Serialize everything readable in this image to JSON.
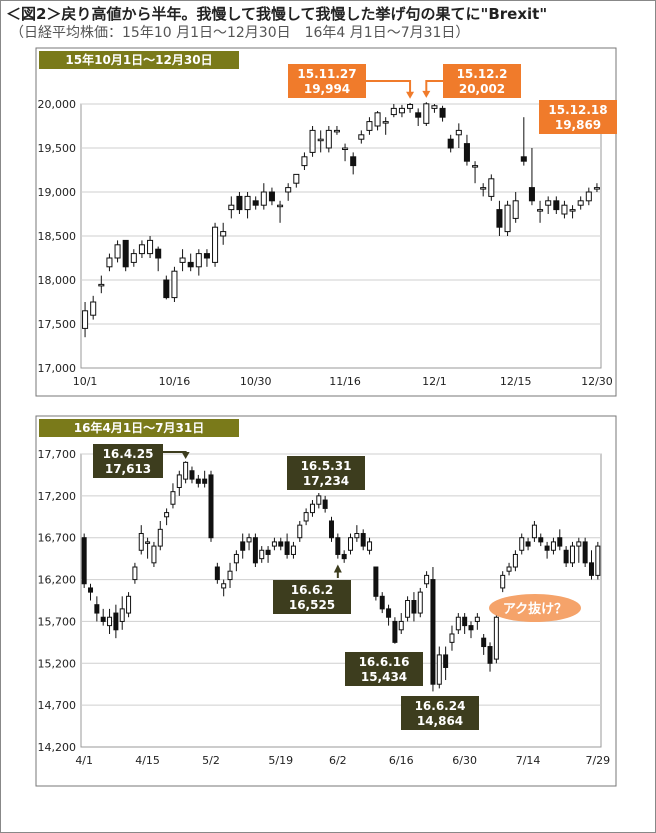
{
  "title": "＜図2＞戻り高値から半年。我慢して我慢して我慢した挙げ句の果てに\"Brexit\"",
  "subtitle": "（日経平均株価：15年10 月1日～12月30日　16年4 月1日～7月31日）",
  "colors": {
    "up": "#ffffff",
    "down": "#111111",
    "wick": "#111111",
    "grid": "#cfcfcf",
    "orange": "#f07b2b",
    "olive": "#3d3d1e",
    "panel_title": "#7a7a1a"
  },
  "chart_data": [
    {
      "type": "candlestick",
      "title": "15年10月1日～12月30日",
      "ylim": [
        17000,
        20000
      ],
      "yticks": [
        17000,
        17500,
        18000,
        18500,
        19000,
        19500,
        20000
      ],
      "ytick_labels": [
        "17,000",
        "17,500",
        "18,000",
        "18,500",
        "19,000",
        "19,500",
        "20,000"
      ],
      "xtick_labels": [
        "10/1",
        "10/16",
        "10/30",
        "11/16",
        "12/1",
        "12/15",
        "12/30"
      ],
      "xtick_index": [
        0,
        11,
        21,
        32,
        43,
        53,
        63
      ],
      "candles": [
        [
          17450,
          17650,
          17350,
          17750
        ],
        [
          17600,
          17750,
          17550,
          17820
        ],
        [
          17950,
          17950,
          17850,
          18050
        ],
        [
          18150,
          18250,
          18100,
          18300
        ],
        [
          18250,
          18400,
          18200,
          18450
        ],
        [
          18450,
          18150,
          18100,
          18450
        ],
        [
          18200,
          18300,
          18150,
          18350
        ],
        [
          18300,
          18400,
          18250,
          18450
        ],
        [
          18300,
          18450,
          18250,
          18500
        ],
        [
          18350,
          18250,
          18100,
          18380
        ],
        [
          18000,
          17800,
          17780,
          18050
        ],
        [
          17800,
          18100,
          17750,
          18150
        ],
        [
          18200,
          18250,
          18100,
          18350
        ],
        [
          18200,
          18150,
          18100,
          18300
        ],
        [
          18150,
          18300,
          18050,
          18350
        ],
        [
          18300,
          18250,
          18150,
          18350
        ],
        [
          18200,
          18600,
          18150,
          18650
        ],
        [
          18500,
          18550,
          18400,
          18650
        ],
        [
          18800,
          18850,
          18700,
          18950
        ],
        [
          18950,
          18800,
          18750,
          19000
        ],
        [
          18800,
          18950,
          18700,
          19000
        ],
        [
          18900,
          18850,
          18800,
          18950
        ],
        [
          18850,
          19000,
          18800,
          19100
        ],
        [
          19000,
          18900,
          18850,
          19050
        ],
        [
          18850,
          18850,
          18650,
          18900
        ],
        [
          19000,
          19050,
          18900,
          19100
        ],
        [
          19100,
          19200,
          19050,
          19200
        ],
        [
          19300,
          19400,
          19250,
          19450
        ],
        [
          19450,
          19700,
          19400,
          19750
        ],
        [
          19600,
          19600,
          19450,
          19700
        ],
        [
          19500,
          19700,
          19450,
          19750
        ],
        [
          19700,
          19700,
          19650,
          19750
        ],
        [
          19500,
          19500,
          19350,
          19550
        ],
        [
          19400,
          19300,
          19200,
          19450
        ],
        [
          19600,
          19650,
          19550,
          19700
        ],
        [
          19700,
          19800,
          19650,
          19850
        ],
        [
          19750,
          19900,
          19700,
          19920
        ],
        [
          19800,
          19800,
          19650,
          19850
        ],
        [
          19880,
          19950,
          19850,
          20000
        ],
        [
          19900,
          19950,
          19850,
          19990
        ],
        [
          19950,
          19994,
          19900,
          20012
        ],
        [
          19900,
          19850,
          19750,
          19950
        ],
        [
          19780,
          20002,
          19750,
          20020
        ],
        [
          19950,
          19980,
          19900,
          20000
        ],
        [
          19950,
          19850,
          19800,
          19980
        ],
        [
          19600,
          19500,
          19450,
          19650
        ],
        [
          19650,
          19700,
          19500,
          19780
        ],
        [
          19550,
          19350,
          19300,
          19650
        ],
        [
          19300,
          19300,
          19100,
          19350
        ],
        [
          19050,
          19050,
          18950,
          19100
        ],
        [
          18950,
          19150,
          18900,
          19200
        ],
        [
          18800,
          18600,
          18500,
          18900
        ],
        [
          18550,
          18850,
          18500,
          18900
        ],
        [
          18700,
          18900,
          18650,
          19000
        ],
        [
          19400,
          19350,
          19300,
          19850
        ],
        [
          19050,
          18900,
          18850,
          19500
        ],
        [
          18800,
          18800,
          18650,
          18900
        ],
        [
          18850,
          18900,
          18750,
          18950
        ],
        [
          18900,
          18800,
          18750,
          18950
        ],
        [
          18750,
          18850,
          18700,
          18900
        ],
        [
          18800,
          18800,
          18700,
          18850
        ],
        [
          18850,
          18900,
          18800,
          18950
        ],
        [
          18900,
          19000,
          18850,
          19050
        ],
        [
          19050,
          19050,
          19000,
          19100
        ]
      ],
      "annotations": [
        {
          "date": "15.11.27",
          "value": "19,994",
          "index": 40
        },
        {
          "date": "15.12.2",
          "value": "20,002",
          "index": 42
        },
        {
          "date": "15.12.18",
          "value": "19,869",
          "index": 54
        }
      ]
    },
    {
      "type": "candlestick",
      "title": "16年4月1日～7月31日",
      "ylim": [
        14200,
        17700
      ],
      "yticks": [
        14200,
        14700,
        15200,
        15700,
        16200,
        16700,
        17200,
        17700
      ],
      "ytick_labels": [
        "14,200",
        "14,700",
        "15,200",
        "15,700",
        "16,200",
        "16,700",
        "17,200",
        "17,700"
      ],
      "xtick_labels": [
        "4/1",
        "4/15",
        "5/2",
        "5/19",
        "6/2",
        "6/16",
        "6/30",
        "7/14",
        "7/29"
      ],
      "xtick_index": [
        0,
        10,
        20,
        31,
        40,
        50,
        60,
        70,
        81
      ],
      "candles": [
        [
          16700,
          16150,
          16100,
          16750
        ],
        [
          16100,
          16050,
          15950,
          16150
        ],
        [
          15900,
          15800,
          15700,
          16000
        ],
        [
          15750,
          15700,
          15650,
          15850
        ],
        [
          15650,
          15750,
          15550,
          15850
        ],
        [
          15800,
          15600,
          15500,
          15900
        ],
        [
          15700,
          15850,
          15600,
          16000
        ],
        [
          15800,
          16000,
          15750,
          16050
        ],
        [
          16200,
          16350,
          16150,
          16400
        ],
        [
          16550,
          16750,
          16500,
          16850
        ],
        [
          16650,
          16650,
          16450,
          16700
        ],
        [
          16400,
          16600,
          16350,
          16650
        ],
        [
          16600,
          16800,
          16550,
          16900
        ],
        [
          16950,
          17000,
          16850,
          17050
        ],
        [
          17100,
          17250,
          17050,
          17350
        ],
        [
          17300,
          17450,
          17200,
          17500
        ],
        [
          17400,
          17600,
          17350,
          17613
        ],
        [
          17500,
          17400,
          17350,
          17550
        ],
        [
          17400,
          17350,
          17300,
          17450
        ],
        [
          17400,
          17350,
          17300,
          17500
        ],
        [
          17450,
          16700,
          16650,
          17500
        ],
        [
          16350,
          16200,
          16150,
          16400
        ],
        [
          16100,
          16150,
          16000,
          16200
        ],
        [
          16200,
          16300,
          16100,
          16400
        ],
        [
          16400,
          16500,
          16300,
          16550
        ],
        [
          16650,
          16550,
          16450,
          16750
        ],
        [
          16650,
          16700,
          16550,
          16750
        ],
        [
          16700,
          16400,
          16350,
          16750
        ],
        [
          16450,
          16550,
          16400,
          16600
        ],
        [
          16550,
          16500,
          16400,
          16600
        ],
        [
          16600,
          16650,
          16550,
          16700
        ],
        [
          16650,
          16600,
          16550,
          16700
        ],
        [
          16650,
          16500,
          16450,
          16750
        ],
        [
          16500,
          16600,
          16450,
          16650
        ],
        [
          16700,
          16850,
          16650,
          16900
        ],
        [
          16900,
          17000,
          16850,
          17050
        ],
        [
          17000,
          17100,
          16950,
          17150
        ],
        [
          17100,
          17200,
          17050,
          17234
        ],
        [
          17150,
          17050,
          17000,
          17200
        ],
        [
          16900,
          16700,
          16650,
          16950
        ],
        [
          16700,
          16500,
          16450,
          16750
        ],
        [
          16500,
          16450,
          16400,
          16550
        ],
        [
          16550,
          16700,
          16500,
          16750
        ],
        [
          16700,
          16750,
          16650,
          16850
        ],
        [
          16750,
          16600,
          16550,
          16800
        ],
        [
          16550,
          16650,
          16500,
          16700
        ],
        [
          16350,
          16000,
          15950,
          16350
        ],
        [
          16000,
          15850,
          15800,
          16050
        ],
        [
          15850,
          15750,
          15650,
          15900
        ],
        [
          15700,
          15450,
          15434,
          15750
        ],
        [
          15600,
          15700,
          15550,
          15800
        ],
        [
          15750,
          15950,
          15700,
          16000
        ],
        [
          15950,
          15800,
          15700,
          16050
        ],
        [
          15800,
          16050,
          15750,
          16100
        ],
        [
          16150,
          16250,
          16100,
          16300
        ],
        [
          16200,
          14950,
          14864,
          16350
        ],
        [
          14950,
          15300,
          14900,
          15400
        ],
        [
          15300,
          15150,
          15000,
          15400
        ],
        [
          15450,
          15550,
          15350,
          15650
        ],
        [
          15600,
          15750,
          15550,
          15800
        ],
        [
          15750,
          15650,
          15550,
          15800
        ],
        [
          15650,
          15600,
          15500,
          15700
        ],
        [
          15700,
          15750,
          15600,
          15800
        ],
        [
          15500,
          15400,
          15300,
          15550
        ],
        [
          15400,
          15200,
          15100,
          15450
        ],
        [
          15250,
          15750,
          15200,
          15800
        ],
        [
          16100,
          16250,
          16050,
          16300
        ],
        [
          16300,
          16350,
          16250,
          16400
        ],
        [
          16350,
          16500,
          16300,
          16550
        ],
        [
          16550,
          16700,
          16500,
          16750
        ],
        [
          16650,
          16600,
          16550,
          16700
        ],
        [
          16700,
          16850,
          16650,
          16900
        ],
        [
          16700,
          16650,
          16600,
          16750
        ],
        [
          16600,
          16550,
          16450,
          16650
        ],
        [
          16550,
          16650,
          16500,
          16700
        ],
        [
          16700,
          16600,
          16550,
          16800
        ],
        [
          16550,
          16400,
          16350,
          16600
        ],
        [
          16400,
          16600,
          16350,
          16650
        ],
        [
          16600,
          16650,
          16400,
          16700
        ],
        [
          16650,
          16400,
          16350,
          16700
        ],
        [
          16400,
          16250,
          16200,
          16550
        ],
        [
          16250,
          16600,
          16200,
          16650
        ]
      ],
      "annotations": [
        {
          "date": "16.4.25",
          "value": "17,613",
          "index": 16
        },
        {
          "date": "16.5.31",
          "value": "17,234",
          "index": 37
        },
        {
          "date": "16.6.2",
          "value": "16,525",
          "index": 40
        },
        {
          "date": "16.6.16",
          "value": "15,434",
          "index": 49
        },
        {
          "date": "16.6.24",
          "value": "14,864",
          "index": 55
        }
      ],
      "callout": "アク抜け？"
    }
  ]
}
